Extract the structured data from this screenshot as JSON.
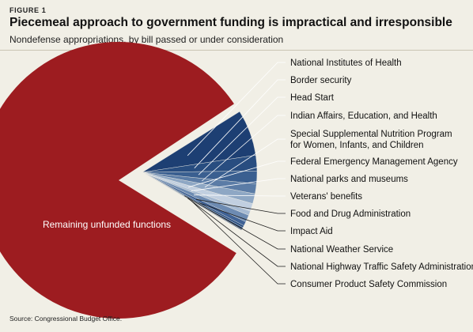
{
  "figure_label": "FIGURE 1",
  "title": "Piecemeal approach to government funding is impractical and irresponsible",
  "subtitle": "Nondefense appropriations, by bill passed or under consideration",
  "source": "Source: Congressional Budget Office.",
  "colors": {
    "background": "#f1efe6",
    "remaining": "#9d1c20",
    "funded": [
      "#1d3f73",
      "#284d80",
      "#3a5f90",
      "#5b7ca6",
      "#8ea7c4",
      "#c1cfe0",
      "#a7bbd3",
      "#6d8bb2",
      "#3f6295",
      "#2a4f82",
      "#1f4577",
      "#183a6a",
      "#12305d"
    ],
    "leader_line": "#ffffff"
  },
  "chart_data": {
    "type": "pie",
    "title": "Piecemeal approach to government funding is impractical and irresponsible",
    "subtitle": "Nondefense appropriations, by bill passed or under consideration",
    "unit": "share of nondefense appropriations (%)",
    "slices": [
      {
        "label": "National Institutes of Health",
        "value": 6.5
      },
      {
        "label": "Border security",
        "value": 2.2
      },
      {
        "label": "Head Start",
        "value": 1.8
      },
      {
        "label": "Indian Affairs, Education, and Health",
        "value": 1.4
      },
      {
        "label": "Special Supplemental Nutrition Program for Women, Infants, and Children",
        "label_lines": [
          "Special Supplemental Nutrition Program",
          "for Women, Infants, and Children"
        ],
        "value": 1.4
      },
      {
        "label": "Federal Emergency Management Agency",
        "value": 1.1
      },
      {
        "label": "National parks and museums",
        "value": 0.6
      },
      {
        "label": "Veterans' benefits",
        "value": 1.0
      },
      {
        "label": "Food and Drug Administration",
        "value": 0.6
      },
      {
        "label": "Impact Aid",
        "value": 0.3
      },
      {
        "label": "National Weather Service",
        "value": 0.2
      },
      {
        "label": "National Highway Traffic Safety Administration",
        "value": 0.1
      },
      {
        "label": "Consumer Product Safety Commission",
        "value": 0.1
      },
      {
        "label": "Remaining unfunded functions",
        "value": 82.7
      }
    ],
    "legend": "none",
    "labels_placement": "right, with leader lines"
  }
}
